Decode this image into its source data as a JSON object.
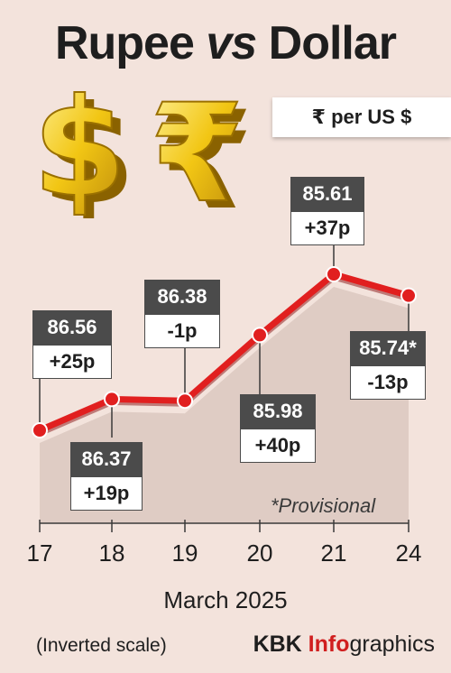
{
  "title": {
    "part1": "Rupee",
    "part2": "vs",
    "part3": "Dollar"
  },
  "unit_label": "₹  per US $",
  "icons": [
    "dollar-symbol-3d",
    "rupee-symbol-3d"
  ],
  "colors": {
    "line": "#e11f1f",
    "point": "#e11f1f",
    "area": "#d9c5be",
    "dark_label": "#4b4b4b",
    "background": "#f3e3dc"
  },
  "chart_data": {
    "type": "line",
    "title": "Rupee vs Dollar",
    "xlabel": "March 2025",
    "ylabel": "₹ per US $",
    "inverted_y": true,
    "categories": [
      "17",
      "18",
      "19",
      "20",
      "21",
      "24"
    ],
    "series": [
      {
        "values": [
          86.56,
          86.37,
          86.38,
          85.98,
          85.61,
          85.74
        ],
        "value_labels": [
          "86.56",
          "86.37",
          "86.38",
          "85.98",
          "85.61",
          "85.74*"
        ],
        "change_labels": [
          "+25p",
          "+19p",
          "-1p",
          "+40p",
          "+37p",
          "-13p"
        ]
      }
    ],
    "note": "*Provisional"
  },
  "footer": {
    "scale_note": "(Inverted scale)",
    "brand_1": "KBK ",
    "brand_2": "Info",
    "brand_3": "graphics"
  }
}
